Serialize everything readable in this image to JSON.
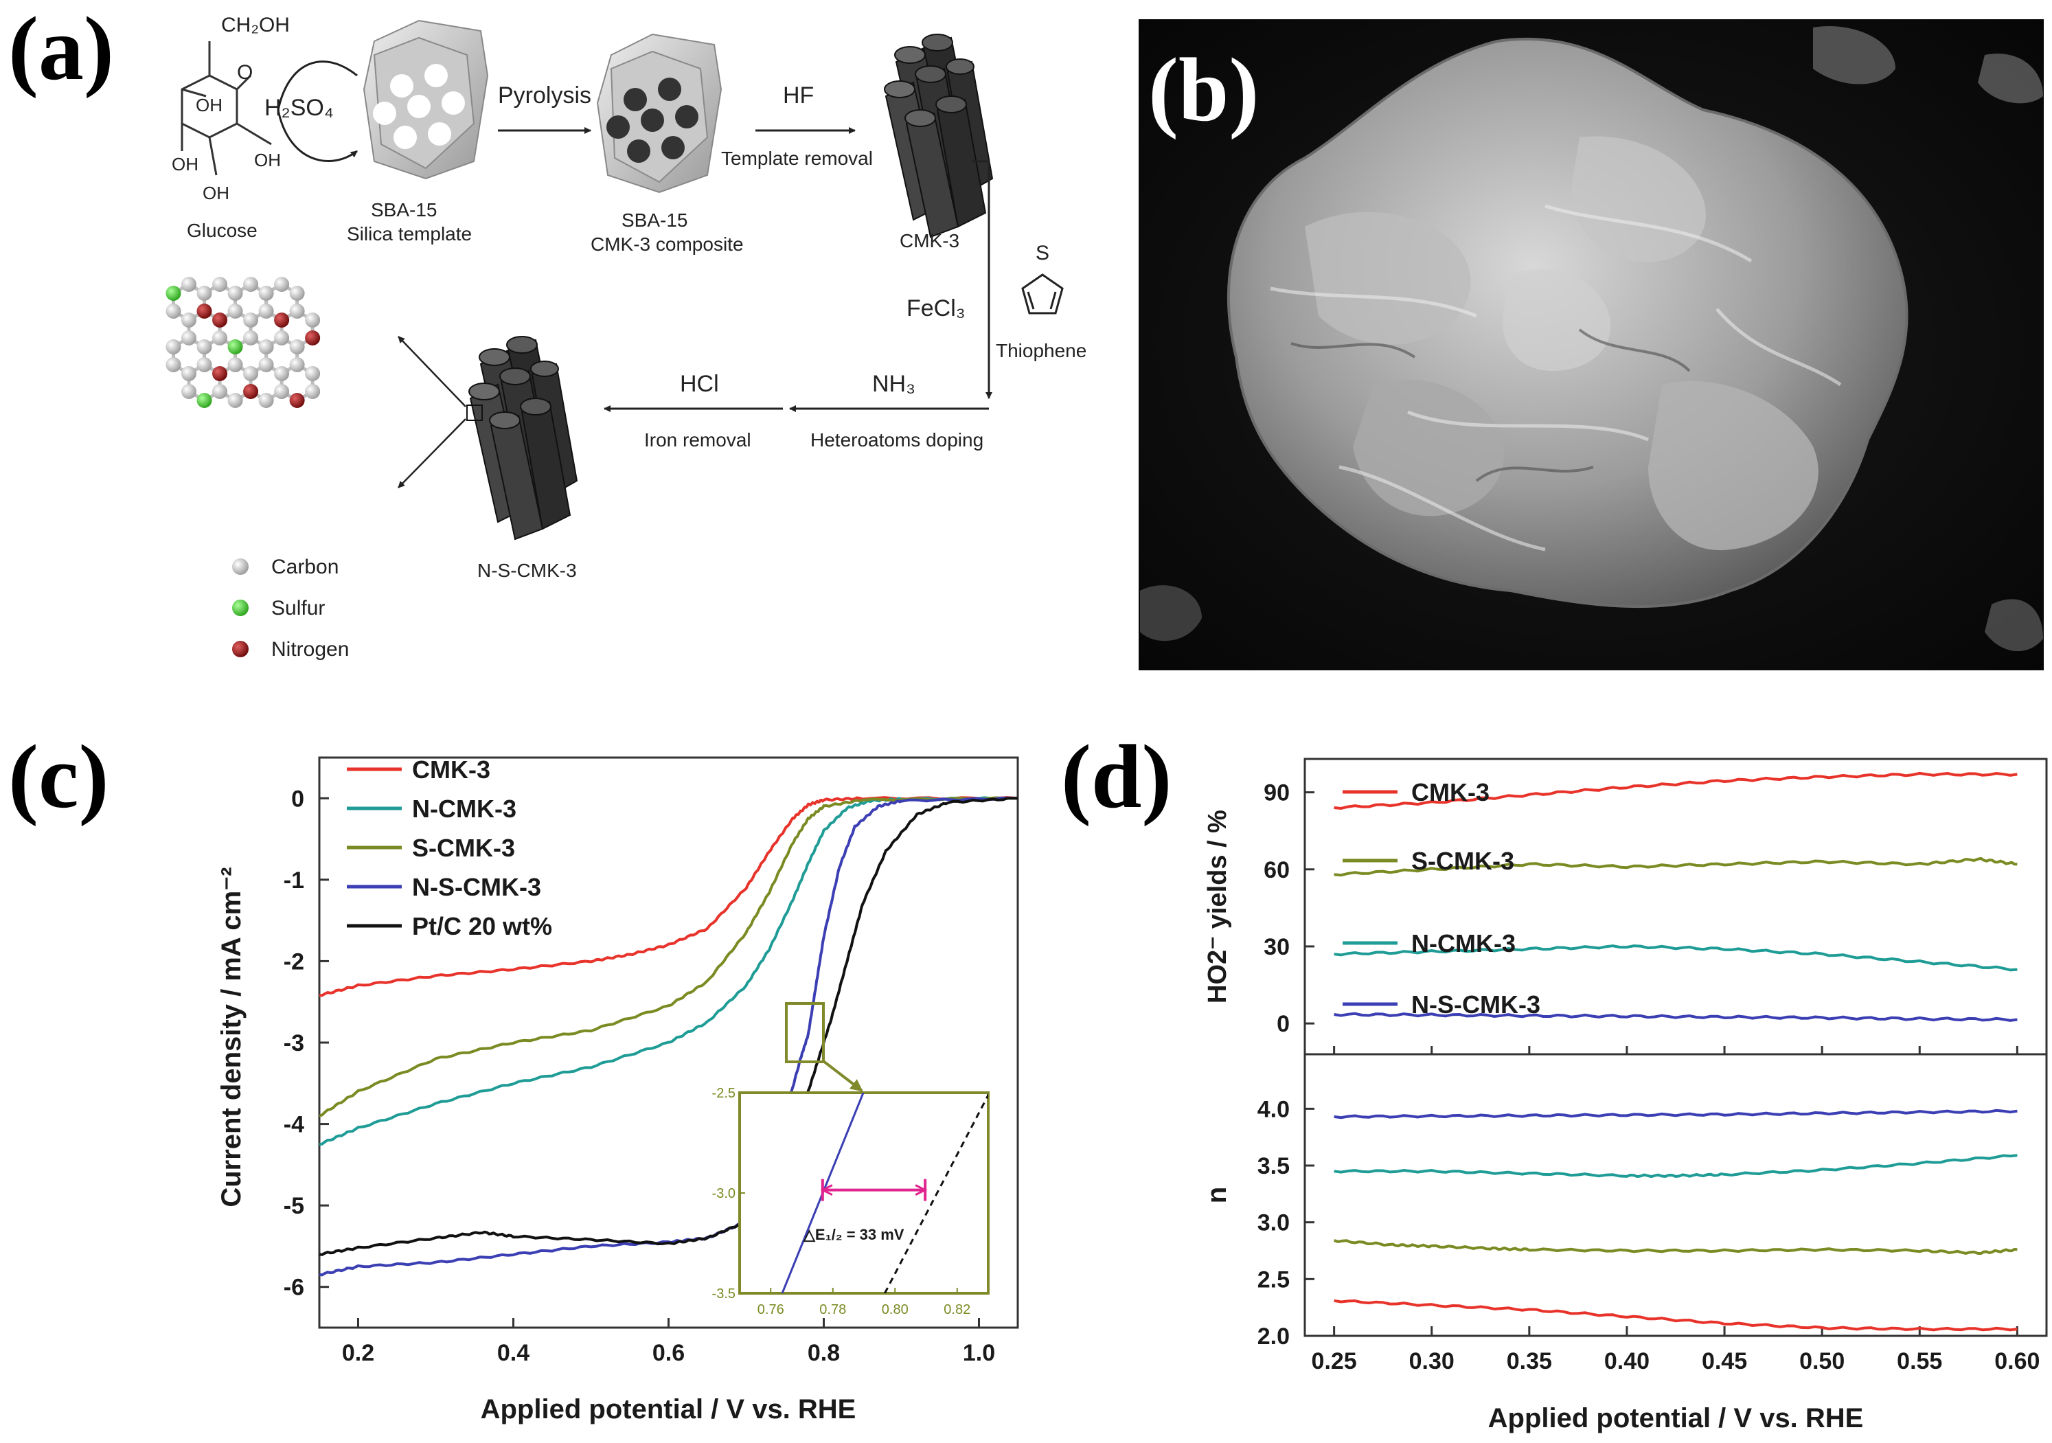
{
  "panels": {
    "a": {
      "label": "(a)",
      "glucose": {
        "ch2oh": "CH₂OH",
        "ring_o": "O",
        "oh": "OH",
        "name": "Glucose"
      },
      "h2so4": "H₂SO₄",
      "sba15": {
        "line1": "SBA-15",
        "line2": "Silica template"
      },
      "pyrolysis": "Pyrolysis",
      "composite": {
        "line1": "SBA-15",
        "line2": "CMK-3 composite"
      },
      "hf": "HF",
      "template_removal": "Template removal",
      "cmk3": "CMK-3",
      "fecl3": "FeCl₃",
      "thiophene_s": "S",
      "thiophene": "Thiophene",
      "nh3": "NH₃",
      "heteroatoms": "Heteroatoms doping",
      "hcl": "HCl",
      "iron_removal": "Iron removal",
      "nscmk3": "N-S-CMK-3",
      "legend": [
        "Carbon",
        "Sulfur",
        "Nitrogen"
      ]
    },
    "b": {
      "label": "(b)"
    },
    "c": {
      "label": "(c)"
    },
    "d": {
      "label": "(d)"
    }
  },
  "colors": {
    "red": "#e8332b",
    "teal": "#1f9c96",
    "olive": "#7b8a22",
    "blue": "#3b3fb3",
    "black": "#111111",
    "carbon": "#c8c8c8",
    "sulfur": "#44cc33",
    "nitrogen": "#a01818",
    "inset_frame": "#808a2a",
    "delta": "#e0258f"
  },
  "chart_data": [
    {
      "id": "c",
      "type": "line",
      "title": "",
      "xlabel": "Applied potential / V vs. RHE",
      "ylabel": "Current density / mA cm⁻²",
      "xlim": [
        0.15,
        1.05
      ],
      "ylim": [
        -6.5,
        0.5
      ],
      "xticks": [
        0.2,
        0.4,
        0.6,
        0.8,
        1.0
      ],
      "xtick_labels": [
        "0.2",
        "0.4",
        "0.6",
        "0.8",
        "1.0"
      ],
      "yticks": [
        0,
        -1,
        -2,
        -3,
        -4,
        -5,
        -6
      ],
      "ytick_labels": [
        "0",
        "-1",
        "-2",
        "-3",
        "-4",
        "-5",
        "-6"
      ],
      "legend_position": "top-left",
      "series": [
        {
          "name": "CMK-3",
          "color": "#e8332b",
          "x": [
            0.15,
            0.2,
            0.3,
            0.4,
            0.5,
            0.55,
            0.6,
            0.65,
            0.7,
            0.73,
            0.76,
            0.78,
            0.8,
            0.85,
            1.05
          ],
          "y": [
            -2.42,
            -2.3,
            -2.18,
            -2.1,
            -2.0,
            -1.92,
            -1.8,
            -1.6,
            -1.1,
            -0.65,
            -0.25,
            -0.08,
            -0.02,
            0,
            0
          ]
        },
        {
          "name": "N-CMK-3",
          "color": "#1f9c96",
          "x": [
            0.15,
            0.2,
            0.3,
            0.4,
            0.5,
            0.6,
            0.65,
            0.7,
            0.73,
            0.76,
            0.78,
            0.8,
            0.83,
            0.86,
            0.9,
            1.05
          ],
          "y": [
            -4.25,
            -4.05,
            -3.75,
            -3.5,
            -3.3,
            -3.0,
            -2.75,
            -2.3,
            -1.85,
            -1.25,
            -0.8,
            -0.4,
            -0.12,
            -0.03,
            -0.01,
            0
          ]
        },
        {
          "name": "S-CMK-3",
          "color": "#7b8a22",
          "x": [
            0.15,
            0.2,
            0.3,
            0.4,
            0.5,
            0.6,
            0.65,
            0.7,
            0.73,
            0.76,
            0.78,
            0.8,
            0.85,
            1.05
          ],
          "y": [
            -3.9,
            -3.6,
            -3.2,
            -3.0,
            -2.85,
            -2.55,
            -2.25,
            -1.65,
            -1.15,
            -0.55,
            -0.25,
            -0.1,
            -0.02,
            0
          ]
        },
        {
          "name": "N-S-CMK-3",
          "color": "#3b3fb3",
          "x": [
            0.15,
            0.2,
            0.3,
            0.4,
            0.5,
            0.6,
            0.65,
            0.7,
            0.73,
            0.75,
            0.77,
            0.78,
            0.79,
            0.8,
            0.82,
            0.84,
            0.87,
            0.9,
            1.05
          ],
          "y": [
            -5.85,
            -5.75,
            -5.7,
            -5.6,
            -5.5,
            -5.45,
            -5.4,
            -5.2,
            -4.6,
            -3.9,
            -3.2,
            -2.9,
            -2.3,
            -1.7,
            -0.85,
            -0.35,
            -0.1,
            -0.03,
            0
          ]
        },
        {
          "name": "Pt/C 20 wt%",
          "color": "#111111",
          "x": [
            0.15,
            0.2,
            0.3,
            0.36,
            0.4,
            0.5,
            0.6,
            0.65,
            0.7,
            0.74,
            0.77,
            0.79,
            0.81,
            0.83,
            0.85,
            0.88,
            0.92,
            0.96,
            1.05
          ],
          "y": [
            -5.6,
            -5.52,
            -5.4,
            -5.33,
            -5.38,
            -5.42,
            -5.47,
            -5.4,
            -5.2,
            -4.6,
            -3.9,
            -3.3,
            -2.7,
            -2.0,
            -1.3,
            -0.65,
            -0.2,
            -0.05,
            0
          ]
        }
      ],
      "inset": {
        "xlim": [
          0.75,
          0.83
        ],
        "ylim": [
          -3.5,
          -2.5
        ],
        "xtick_labels": [
          "0.76",
          "0.78",
          "0.80",
          "0.82"
        ],
        "xticks": [
          0.76,
          0.78,
          0.8,
          0.82
        ],
        "ytick_labels": [
          "-2.5",
          "-3.0",
          "-3.5"
        ],
        "yticks": [
          -2.5,
          -3.0,
          -3.5
        ],
        "annotation": "△E₁/₂ = 33 mV",
        "lines": [
          {
            "name": "N-S-CMK-3",
            "x": [
              0.7637,
              0.7898
            ],
            "y": [
              -3.5,
              -2.5
            ]
          },
          {
            "name": "Pt/C 20 wt%",
            "x": [
              0.7967,
              0.8304
            ],
            "y": [
              -3.5,
              -2.5
            ]
          }
        ],
        "delta_from": 0.7767,
        "delta_to": 0.8097,
        "delta_y": -2.985
      }
    },
    {
      "id": "d_top",
      "type": "line",
      "title": "",
      "xlabel": "",
      "ylabel": "HO2⁻ yields / %",
      "xlim": [
        0.235,
        0.615
      ],
      "ylim": [
        -12,
        103
      ],
      "yticks": [
        0,
        30,
        60,
        90
      ],
      "ytick_labels": [
        "0",
        "30",
        "60",
        "90"
      ],
      "series": [
        {
          "name": "CMK-3",
          "color": "#e8332b",
          "x": [
            0.25,
            0.3,
            0.35,
            0.4,
            0.45,
            0.5,
            0.55,
            0.6
          ],
          "y": [
            84,
            86,
            89,
            92,
            94.5,
            96,
            97,
            97
          ]
        },
        {
          "name": "S-CMK-3",
          "color": "#7b8a22",
          "x": [
            0.25,
            0.3,
            0.35,
            0.4,
            0.45,
            0.5,
            0.55,
            0.58,
            0.6
          ],
          "y": [
            58,
            60,
            62,
            61,
            62,
            63,
            62,
            64,
            62
          ]
        },
        {
          "name": "N-CMK-3",
          "color": "#1f9c96",
          "x": [
            0.25,
            0.3,
            0.35,
            0.4,
            0.45,
            0.5,
            0.55,
            0.6
          ],
          "y": [
            27,
            28,
            29,
            30,
            29,
            27,
            24,
            21
          ]
        },
        {
          "name": "N-S-CMK-3",
          "color": "#3b3fb3",
          "x": [
            0.25,
            0.3,
            0.35,
            0.4,
            0.45,
            0.5,
            0.55,
            0.6
          ],
          "y": [
            3.5,
            3.3,
            3,
            2.8,
            2.5,
            2.2,
            1.8,
            1.5
          ]
        }
      ]
    },
    {
      "id": "d_bottom",
      "type": "line",
      "title": "",
      "xlabel": "Applied potential / V vs. RHE",
      "ylabel": "n",
      "xlim": [
        0.235,
        0.615
      ],
      "ylim": [
        2.0,
        4.48
      ],
      "xticks": [
        0.25,
        0.3,
        0.35,
        0.4,
        0.45,
        0.5,
        0.55,
        0.6
      ],
      "xtick_labels": [
        "0.25",
        "0.30",
        "0.35",
        "0.40",
        "0.45",
        "0.50",
        "0.55",
        "0.60"
      ],
      "yticks": [
        2.0,
        2.5,
        3.0,
        3.5,
        4.0
      ],
      "ytick_labels": [
        "2.0",
        "2.5",
        "3.0",
        "3.5",
        "4.0"
      ],
      "series": [
        {
          "name": "N-S-CMK-3",
          "color": "#3b3fb3",
          "x": [
            0.25,
            0.3,
            0.35,
            0.4,
            0.45,
            0.5,
            0.55,
            0.6
          ],
          "y": [
            3.93,
            3.935,
            3.94,
            3.945,
            3.95,
            3.96,
            3.97,
            3.98
          ]
        },
        {
          "name": "N-CMK-3",
          "color": "#1f9c96",
          "x": [
            0.25,
            0.3,
            0.35,
            0.4,
            0.425,
            0.45,
            0.5,
            0.55,
            0.6
          ],
          "y": [
            3.45,
            3.45,
            3.43,
            3.41,
            3.41,
            3.42,
            3.46,
            3.52,
            3.59
          ]
        },
        {
          "name": "S-CMK-3",
          "color": "#7b8a22",
          "x": [
            0.25,
            0.28,
            0.3,
            0.33,
            0.35,
            0.4,
            0.45,
            0.5,
            0.55,
            0.58,
            0.6
          ],
          "y": [
            2.84,
            2.8,
            2.79,
            2.77,
            2.76,
            2.75,
            2.75,
            2.76,
            2.75,
            2.73,
            2.76
          ]
        },
        {
          "name": "CMK-3",
          "color": "#e8332b",
          "x": [
            0.25,
            0.3,
            0.35,
            0.4,
            0.45,
            0.5,
            0.55,
            0.6
          ],
          "y": [
            2.31,
            2.27,
            2.23,
            2.17,
            2.11,
            2.07,
            2.06,
            2.06
          ]
        }
      ]
    }
  ]
}
